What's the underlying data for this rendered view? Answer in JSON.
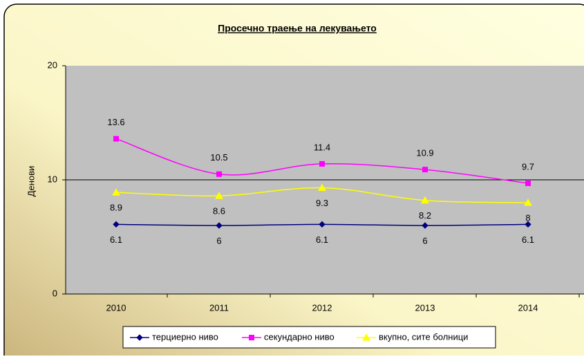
{
  "chart_data": {
    "type": "line",
    "title": "Просечно траење на лекувањето",
    "y_label": "Денови",
    "categories": [
      "2010",
      "2011",
      "2012",
      "2013",
      "2014"
    ],
    "series": [
      {
        "name": "терциерно ниво",
        "color": "#000080",
        "marker": "diamond",
        "label_position": "below",
        "values": [
          6.1,
          6,
          6.1,
          6,
          6.1
        ]
      },
      {
        "name": "секундарно ниво",
        "color": "#ff00ff",
        "marker": "square",
        "label_position": "above",
        "values": [
          13.6,
          10.5,
          11.4,
          10.9,
          9.7
        ]
      },
      {
        "name": "вкупно, сите болници",
        "color": "#ffff00",
        "marker": "triangle",
        "label_position": "below",
        "values": [
          8.9,
          8.6,
          9.3,
          8.2,
          8
        ]
      }
    ],
    "ylim": [
      0,
      20
    ],
    "yticks": [
      0,
      10,
      20
    ],
    "grid": true,
    "smooth": true,
    "legend": "bottom"
  }
}
